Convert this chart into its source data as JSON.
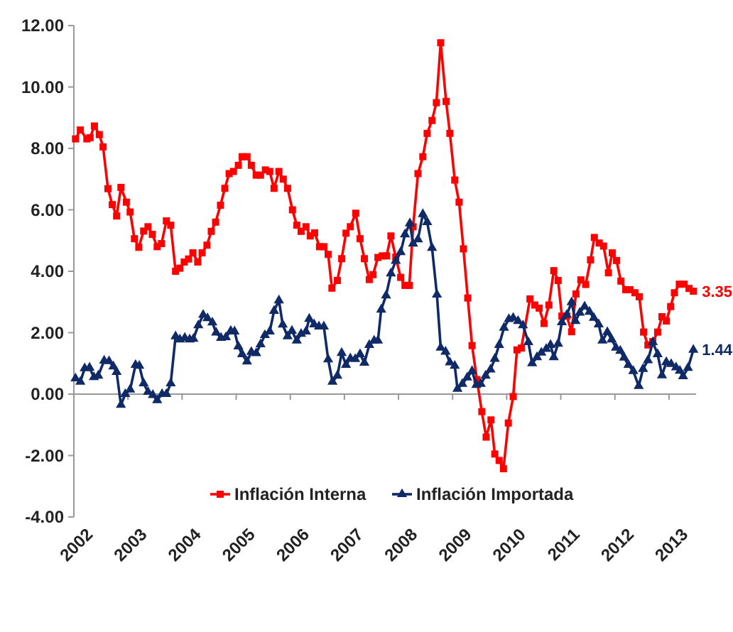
{
  "chart_data": {
    "type": "line",
    "xlim": [
      2002,
      2013.5
    ],
    "xticks": [
      2002,
      2003,
      2004,
      2005,
      2006,
      2007,
      2008,
      2009,
      2010,
      2011,
      2012,
      2013
    ],
    "ylim": [
      -4,
      12
    ],
    "yticks": [
      {
        "value": -4,
        "label": "-4.00"
      },
      {
        "value": -2,
        "label": "-2.00"
      },
      {
        "value": 0,
        "label": "0.00"
      },
      {
        "value": 2,
        "label": "2.00"
      },
      {
        "value": 4,
        "label": "4.00"
      },
      {
        "value": 6,
        "label": "6.00"
      },
      {
        "value": 8,
        "label": "8.00"
      },
      {
        "value": 10,
        "label": "10.00"
      },
      {
        "value": 12,
        "label": "12.00"
      }
    ],
    "grid": false,
    "legend": "bottom",
    "line_style": "solid",
    "series": [
      {
        "name": "Inflación Interna",
        "color": "#ff0000",
        "marker": "square",
        "x": [
          2002.03,
          2002.12,
          2002.24,
          2002.3,
          2002.38,
          2002.47,
          2002.54,
          2002.63,
          2002.71,
          2002.79,
          2002.87,
          2002.97,
          2003.04,
          2003.12,
          2003.2,
          2003.29,
          2003.37,
          2003.45,
          2003.54,
          2003.62,
          2003.71,
          2003.79,
          2003.88,
          2003.96,
          2004.04,
          2004.12,
          2004.2,
          2004.29,
          2004.37,
          2004.46,
          2004.54,
          2004.62,
          2004.71,
          2004.79,
          2004.87,
          2004.95,
          2005.04,
          2005.11,
          2005.2,
          2005.28,
          2005.37,
          2005.45,
          2005.54,
          2005.62,
          2005.7,
          2005.79,
          2005.87,
          2005.95,
          2006.04,
          2006.12,
          2006.2,
          2006.29,
          2006.37,
          2006.45,
          2006.54,
          2006.62,
          2006.7,
          2006.77,
          2006.87,
          2006.95,
          2007.03,
          2007.11,
          2007.21,
          2007.29,
          2007.37,
          2007.46,
          2007.53,
          2007.62,
          2007.7,
          2007.78,
          2007.86,
          2007.95,
          2008.04,
          2008.12,
          2008.2,
          2008.27,
          2008.36,
          2008.45,
          2008.53,
          2008.62,
          2008.7,
          2008.78,
          2008.88,
          2008.95,
          2009.04,
          2009.12,
          2009.2,
          2009.28,
          2009.36,
          2009.45,
          2009.54,
          2009.62,
          2009.71,
          2009.78,
          2009.86,
          2009.94,
          2010.03,
          2010.12,
          2010.19,
          2010.27,
          2010.43,
          2010.52,
          2010.6,
          2010.69,
          2010.78,
          2010.87,
          2010.95,
          2011.02,
          2011.11,
          2011.2,
          2011.28,
          2011.37,
          2011.46,
          2011.55,
          2011.62,
          2011.71,
          2011.79,
          2011.88,
          2011.95,
          2012.03,
          2012.11,
          2012.2,
          2012.28,
          2012.37,
          2012.45,
          2012.53,
          2012.61,
          2012.7,
          2012.79,
          2012.87,
          2012.95,
          2013.03,
          2013.1,
          2013.19,
          2013.28,
          2013.37,
          2013.45
        ],
        "values": [
          8.31,
          8.6,
          8.31,
          8.35,
          8.73,
          8.45,
          8.05,
          6.69,
          6.17,
          5.8,
          6.73,
          6.25,
          5.93,
          5.06,
          4.78,
          5.31,
          5.45,
          5.2,
          4.8,
          4.9,
          5.64,
          5.5,
          4.0,
          4.1,
          4.3,
          4.4,
          4.6,
          4.3,
          4.6,
          4.85,
          5.3,
          5.6,
          6.15,
          6.7,
          7.18,
          7.25,
          7.45,
          7.73,
          7.73,
          7.45,
          7.13,
          7.13,
          7.3,
          7.25,
          6.7,
          7.25,
          7.0,
          6.7,
          6.0,
          5.5,
          5.3,
          5.45,
          5.15,
          5.25,
          4.8,
          4.8,
          4.55,
          3.45,
          3.7,
          4.41,
          5.24,
          5.45,
          5.89,
          5.06,
          4.41,
          3.73,
          3.89,
          4.45,
          4.5,
          4.5,
          5.15,
          4.46,
          3.8,
          3.54,
          3.54,
          5.45,
          7.18,
          7.73,
          8.49,
          8.91,
          9.49,
          11.44,
          9.53,
          8.49,
          6.97,
          6.25,
          4.73,
          3.13,
          1.58,
          0.47,
          -0.57,
          -1.4,
          -0.84,
          -1.95,
          -2.16,
          -2.43,
          -0.94,
          -0.08,
          1.44,
          1.5,
          3.1,
          2.9,
          2.8,
          2.3,
          2.9,
          4.02,
          3.7,
          2.54,
          2.54,
          2.03,
          3.26,
          3.72,
          3.57,
          4.37,
          5.1,
          4.92,
          4.82,
          3.95,
          4.6,
          4.35,
          3.68,
          3.4,
          3.4,
          3.3,
          3.17,
          2.02,
          1.6,
          1.71,
          2.02,
          2.52,
          2.38,
          2.85,
          3.3,
          3.58,
          3.58,
          3.44,
          3.35
        ]
      },
      {
        "name": "Inflación Importada",
        "color": "#0f2a66",
        "marker": "triangle",
        "x": [
          2002.03,
          2002.12,
          2002.2,
          2002.29,
          2002.37,
          2002.45,
          2002.56,
          2002.65,
          2002.73,
          2002.79,
          2002.87,
          2002.95,
          2003.04,
          2003.14,
          2003.21,
          2003.29,
          2003.37,
          2003.46,
          2003.54,
          2003.63,
          2003.71,
          2003.79,
          2003.88,
          2003.96,
          2004.05,
          2004.14,
          2004.21,
          2004.3,
          2004.39,
          2004.47,
          2004.56,
          2004.63,
          2004.72,
          2004.81,
          2004.9,
          2004.97,
          2005.04,
          2005.11,
          2005.2,
          2005.28,
          2005.37,
          2005.45,
          2005.53,
          2005.62,
          2005.7,
          2005.79,
          2005.86,
          2005.95,
          2006.03,
          2006.12,
          2006.2,
          2006.29,
          2006.35,
          2006.44,
          2006.53,
          2006.62,
          2006.7,
          2006.78,
          2006.87,
          2006.95,
          2007.03,
          2007.11,
          2007.2,
          2007.29,
          2007.37,
          2007.46,
          2007.55,
          2007.62,
          2007.68,
          2007.77,
          2007.86,
          2007.95,
          2008.04,
          2008.12,
          2008.21,
          2008.27,
          2008.36,
          2008.45,
          2008.53,
          2008.62,
          2008.71,
          2008.78,
          2008.87,
          2008.95,
          2009.04,
          2009.09,
          2009.18,
          2009.27,
          2009.36,
          2009.44,
          2009.52,
          2009.61,
          2009.7,
          2009.78,
          2009.86,
          2009.95,
          2010.04,
          2010.12,
          2010.21,
          2010.3,
          2010.4,
          2010.47,
          2010.56,
          2010.64,
          2010.73,
          2010.81,
          2010.87,
          2010.95,
          2011.02,
          2011.11,
          2011.2,
          2011.27,
          2011.35,
          2011.44,
          2011.53,
          2011.61,
          2011.7,
          2011.77,
          2011.86,
          2011.94,
          2012.02,
          2012.1,
          2012.17,
          2012.25,
          2012.34,
          2012.44,
          2012.52,
          2012.61,
          2012.7,
          2012.79,
          2012.87,
          2012.95,
          2013.04,
          2013.13,
          2013.2,
          2013.26,
          2013.35,
          2013.45
        ],
        "values": [
          0.51,
          0.4,
          0.84,
          0.86,
          0.55,
          0.6,
          1.09,
          1.07,
          0.9,
          0.72,
          -0.35,
          0.0,
          0.15,
          0.95,
          0.92,
          0.35,
          0.07,
          -0.03,
          -0.2,
          0.0,
          0.0,
          0.35,
          1.88,
          1.78,
          1.83,
          1.78,
          1.8,
          2.24,
          2.58,
          2.47,
          2.33,
          2.0,
          1.83,
          1.85,
          2.06,
          2.04,
          1.55,
          1.3,
          1.06,
          1.37,
          1.33,
          1.62,
          1.92,
          2.04,
          2.71,
          3.05,
          2.26,
          1.88,
          2.06,
          1.74,
          1.96,
          2.04,
          2.45,
          2.27,
          2.2,
          2.2,
          1.13,
          0.4,
          0.6,
          1.34,
          0.95,
          1.16,
          1.14,
          1.3,
          1.02,
          1.6,
          1.74,
          1.74,
          2.75,
          3.21,
          3.93,
          4.34,
          4.62,
          5.2,
          5.56,
          4.9,
          5.04,
          5.86,
          5.6,
          4.76,
          3.24,
          1.51,
          1.38,
          1.03,
          0.92,
          0.17,
          0.33,
          0.54,
          0.75,
          0.3,
          0.33,
          0.6,
          0.8,
          1.15,
          1.6,
          2.16,
          2.44,
          2.48,
          2.38,
          2.24,
          1.69,
          1.0,
          1.2,
          1.35,
          1.47,
          1.6,
          1.2,
          1.64,
          2.34,
          2.58,
          2.99,
          2.38,
          2.65,
          2.85,
          2.68,
          2.48,
          2.27,
          1.74,
          2.02,
          1.78,
          1.51,
          1.41,
          1.19,
          0.95,
          0.75,
          0.26,
          0.82,
          1.1,
          1.69,
          1.3,
          0.61,
          1.04,
          0.98,
          0.87,
          0.76,
          0.58,
          0.85,
          1.44
        ]
      }
    ],
    "ref_lines": [
      {
        "axis": "y",
        "value": 0,
        "color": "#999999"
      }
    ],
    "annotations": [
      {
        "text": "3.35",
        "x": 2013.45,
        "y": 3.35
      },
      {
        "text": "1.44",
        "x": 2013.45,
        "y": 1.44
      }
    ]
  }
}
